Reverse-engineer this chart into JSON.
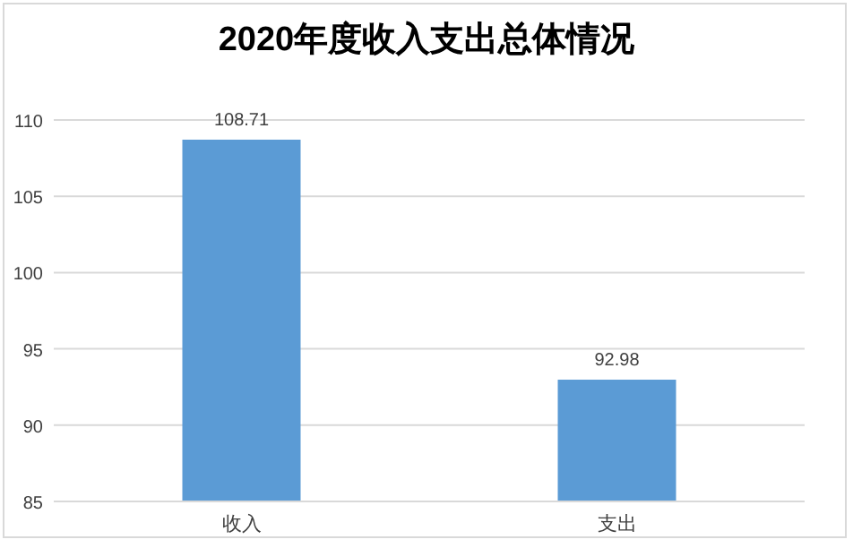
{
  "chart_data": {
    "type": "bar",
    "title": "2020年度收入支出总体情况",
    "categories": [
      "收入",
      "支出"
    ],
    "values": [
      108.71,
      92.98
    ],
    "color": "#5b9bd5",
    "ylim": [
      85,
      110
    ],
    "yticks": [
      85,
      90,
      95,
      100,
      105,
      110
    ],
    "grid": "y",
    "data_labels": true
  }
}
